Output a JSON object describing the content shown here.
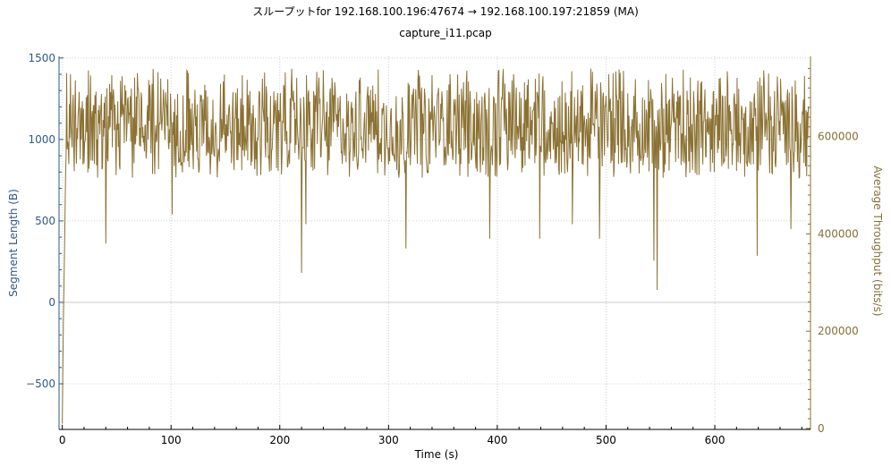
{
  "chart_data": {
    "type": "line",
    "title": "スループットfor 192.168.100.196:47674 → 192.168.100.197:21859 (MA)",
    "subtitle": "capture_i11.pcap",
    "xlabel": "Time (s)",
    "ylabel_left": "Segment Length (B)",
    "ylabel_right": "Average Throughput (bits/s)",
    "x_range": [
      -3,
      688
    ],
    "y_left_range": [
      -780,
      1510
    ],
    "y_right_range": [
      -2000,
      765000
    ],
    "x_ticks": [
      0,
      100,
      200,
      300,
      400,
      500,
      600
    ],
    "y_left_ticks": [
      -500,
      0,
      500,
      1000,
      1500
    ],
    "y_right_ticks": [
      0,
      200000,
      400000,
      600000
    ],
    "x_tick_labels": [
      "0",
      "100",
      "200",
      "300",
      "400",
      "500",
      "600"
    ],
    "y_left_tick_labels": [
      "−500",
      "0",
      "500",
      "1000",
      "1500"
    ],
    "y_right_tick_labels": [
      "0",
      "200000",
      "400000",
      "600000"
    ],
    "grid": true,
    "colors": {
      "series": "#8b7132",
      "left_axis": "#2f5a86",
      "right_axis": "#857038",
      "zero_line": "#c8c8c8"
    },
    "series": [
      {
        "axis": "right",
        "start_points": [
          [
            0.0,
            10000
          ],
          [
            0.5,
            120000
          ],
          [
            1.0,
            220000
          ],
          [
            1.5,
            290000
          ],
          [
            2.0,
            360000
          ],
          [
            2.5,
            440000
          ],
          [
            3.0,
            520000
          ],
          [
            3.5,
            560000
          ]
        ],
        "typical_range": [
          540000,
          700000
        ],
        "dips": [
          [
            40,
            380000
          ],
          [
            101,
            440000
          ],
          [
            220,
            320000
          ],
          [
            224,
            420000
          ],
          [
            316,
            370000
          ],
          [
            393,
            390000
          ],
          [
            439,
            390000
          ],
          [
            469,
            420000
          ],
          [
            494,
            390000
          ],
          [
            544,
            345000
          ],
          [
            547,
            285000
          ],
          [
            639,
            355000
          ],
          [
            670,
            410000
          ]
        ]
      }
    ]
  }
}
